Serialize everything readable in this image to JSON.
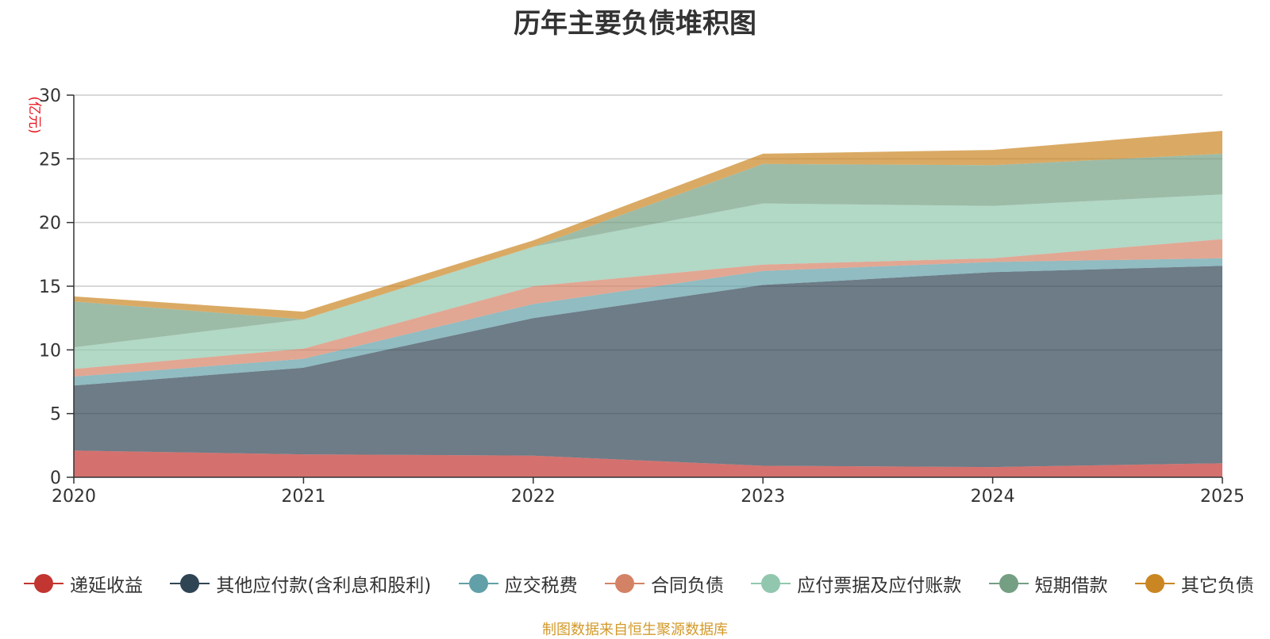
{
  "chart_data": {
    "type": "area",
    "stacked": true,
    "title": "历年主要负债堆积图",
    "ylabel": "(亿元)",
    "xlabel": "",
    "x": [
      "2020",
      "2021",
      "2022",
      "2023",
      "2024",
      "2025"
    ],
    "ylim": [
      0,
      30
    ],
    "yticks": [
      0,
      5,
      10,
      15,
      20,
      25,
      30
    ],
    "grid": true,
    "legend_position": "bottom",
    "series": [
      {
        "name": "递延收益",
        "color": "#c23531",
        "values": [
          2.1,
          1.8,
          1.7,
          0.9,
          0.8,
          1.1
        ]
      },
      {
        "name": "其他应付款(含利息和股利)",
        "color": "#2f4554",
        "values": [
          5.1,
          6.8,
          10.8,
          14.2,
          15.3,
          15.5
        ]
      },
      {
        "name": "应交税费",
        "color": "#61a0a8",
        "values": [
          0.7,
          0.7,
          1.1,
          1.1,
          0.8,
          0.6
        ]
      },
      {
        "name": "合同负债",
        "color": "#d48265",
        "values": [
          0.6,
          0.8,
          1.4,
          0.5,
          0.3,
          1.5
        ]
      },
      {
        "name": "应付票据及应付账款",
        "color": "#91c7ae",
        "values": [
          1.7,
          2.3,
          3.1,
          4.8,
          4.1,
          3.5
        ]
      },
      {
        "name": "短期借款",
        "color": "#749f83",
        "values": [
          3.6,
          0.0,
          0.0,
          3.1,
          3.2,
          3.2
        ]
      },
      {
        "name": "其它负债",
        "color": "#ca8622",
        "values": [
          0.4,
          0.6,
          0.5,
          0.8,
          1.2,
          1.8
        ]
      }
    ],
    "source": "制图数据来自恒生聚源数据库"
  }
}
